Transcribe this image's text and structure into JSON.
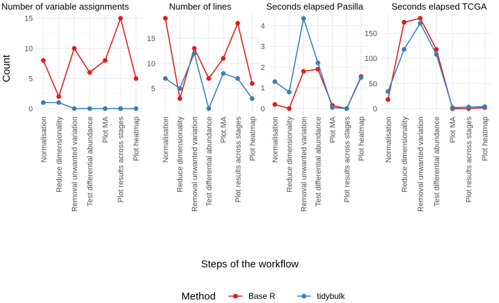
{
  "chart_data": {
    "type": "line",
    "ylabel": "Count",
    "xlabel": "Steps of the workflow",
    "legend": {
      "title": "Method",
      "position": "bottom",
      "entries": [
        {
          "name": "Base R",
          "color": "#e41a1c"
        },
        {
          "name": "tidybulk",
          "color": "#377eb8"
        }
      ]
    },
    "categories": [
      "Normalisation",
      "Reduce dimensionality",
      "Removal unwanted variation",
      "Test differential abundance",
      "Plot MA",
      "Plot results across stages",
      "Plot heatmap"
    ],
    "panels": [
      {
        "title": "Number of variable assignments",
        "ylim": [
          -0.75,
          15.75
        ],
        "yticks": [
          0,
          5,
          10,
          15
        ],
        "series": [
          {
            "name": "Base R",
            "values": [
              8,
              2,
              10,
              6,
              8,
              15,
              5
            ]
          },
          {
            "name": "tidybulk",
            "values": [
              1,
              1,
              0,
              0,
              0,
              0,
              0
            ]
          }
        ]
      },
      {
        "title": "Number of lines",
        "ylim": [
          0.1,
          19.9
        ],
        "yticks": [
          5,
          10,
          15
        ],
        "series": [
          {
            "name": "Base R",
            "values": [
              19,
              3,
              13,
              7,
              11,
              18,
              6
            ]
          },
          {
            "name": "tidybulk",
            "values": [
              7,
              5,
              12,
              1,
              8,
              7,
              3
            ]
          }
        ]
      },
      {
        "title": "Seconds elapsed Pasilla",
        "ylim": [
          -0.22,
          4.58
        ],
        "yticks": [
          0,
          1,
          2,
          3,
          4
        ],
        "series": [
          {
            "name": "Base R",
            "values": [
              0.2,
              0.0,
              1.8,
              1.9,
              0.15,
              0.0,
              1.55
            ]
          },
          {
            "name": "tidybulk",
            "values": [
              1.3,
              0.8,
              4.35,
              2.2,
              0.05,
              0.0,
              1.5
            ]
          }
        ]
      },
      {
        "title": "Seconds elapsed TCGA",
        "ylim": [
          -9,
          189
        ],
        "yticks": [
          0,
          50,
          100,
          150
        ],
        "series": [
          {
            "name": "Base R",
            "values": [
              18,
              172,
              180,
              118,
              0,
              0,
              2
            ]
          },
          {
            "name": "tidybulk",
            "values": [
              34,
              118,
              170,
              108,
              2,
              3,
              4
            ]
          }
        ]
      }
    ]
  }
}
